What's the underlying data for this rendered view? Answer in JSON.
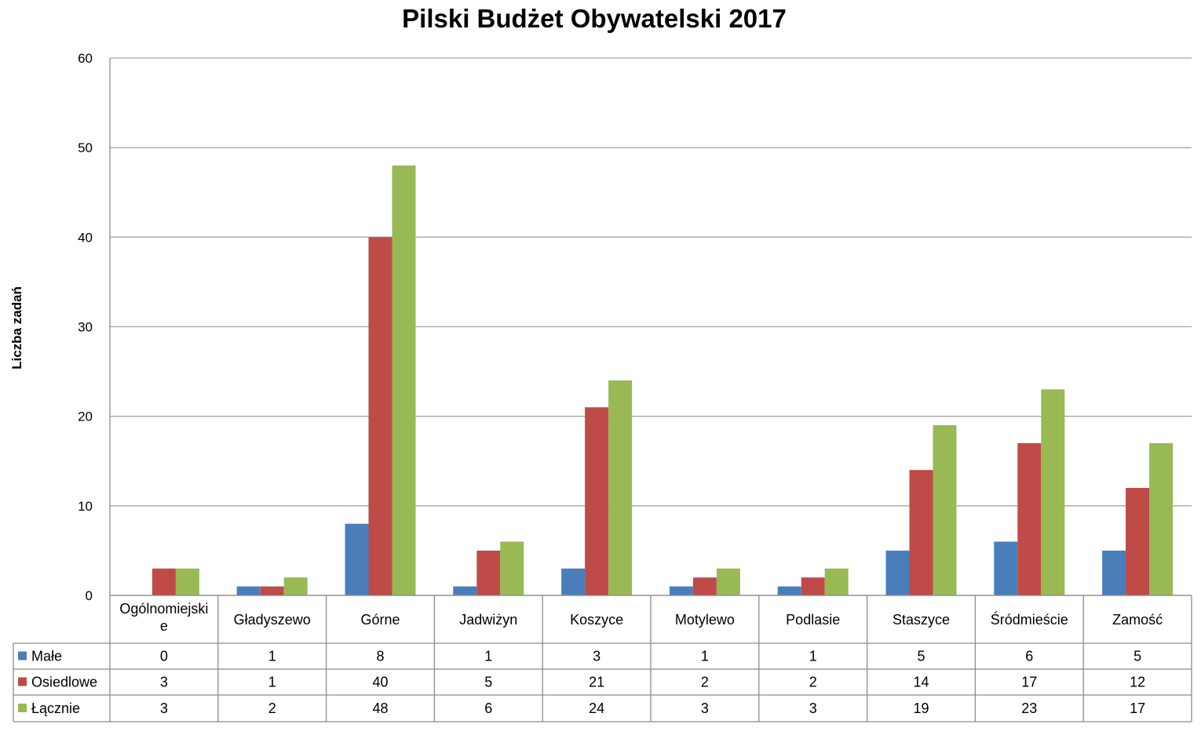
{
  "chart_data": {
    "type": "bar",
    "title": "Pilski  Budżet Obywatelski 2017",
    "ylabel": "Liczba zadań",
    "xlabel": "",
    "ylim": [
      0,
      60
    ],
    "yticks": [
      "0",
      "10",
      "20",
      "30",
      "40",
      "50",
      "60"
    ],
    "grid": true,
    "data_table": true,
    "categories": [
      "Ogólnomiejskie",
      "Gładyszewo",
      "Górne",
      "Jadwiżyn",
      "Koszyce",
      "Motylewo",
      "Podlasie",
      "Staszyce",
      "Śródmieście",
      "Zamość"
    ],
    "category_label_lines": [
      [
        "Ogólnomiejski",
        "e"
      ],
      [
        "Gładyszewo"
      ],
      [
        "Górne"
      ],
      [
        "Jadwiżyn"
      ],
      [
        "Koszyce"
      ],
      [
        "Motylewo"
      ],
      [
        "Podlasie"
      ],
      [
        "Staszyce"
      ],
      [
        "Śródmieście"
      ],
      [
        "Zamość"
      ]
    ],
    "series": [
      {
        "name": "Małe",
        "color": "#4a7ebb",
        "values": [
          0,
          1,
          8,
          1,
          3,
          1,
          1,
          5,
          6,
          5
        ]
      },
      {
        "name": "Osiedlowe",
        "color": "#be4b48",
        "values": [
          3,
          1,
          40,
          5,
          21,
          2,
          2,
          14,
          17,
          12
        ]
      },
      {
        "name": "Łącznie",
        "color": "#98b954",
        "values": [
          3,
          2,
          48,
          6,
          24,
          3,
          3,
          19,
          23,
          17
        ]
      }
    ]
  }
}
